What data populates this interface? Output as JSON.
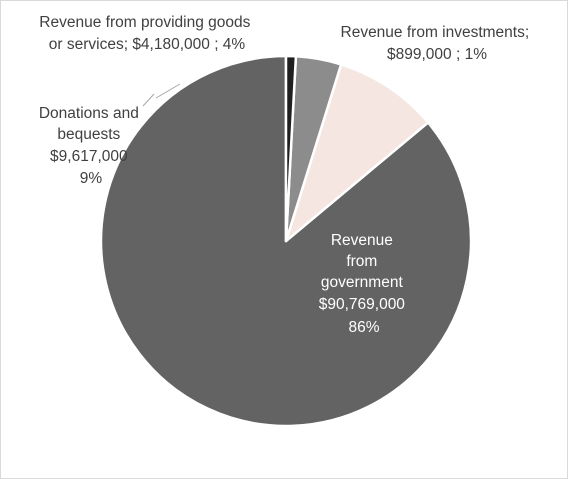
{
  "chart_data": {
    "type": "pie",
    "title": "",
    "slices": [
      {
        "name": "Revenue from government",
        "value": 90769000,
        "percent": 86,
        "color": "#636363",
        "label_lines": [
          "Revenue",
          "from",
          "government",
          "$90,769,000",
          "86%"
        ]
      },
      {
        "name": "Donations and bequests",
        "value": 9617000,
        "percent": 9,
        "color": "#f5e6e1",
        "label_lines": [
          "Donations and",
          "bequests",
          "$9,617,000",
          "9%"
        ]
      },
      {
        "name": "Revenue from providing goods or services",
        "value": 4180000,
        "percent": 4,
        "color": "#8c8c8c",
        "label_lines": [
          "Revenue from providing goods",
          "or services;  $4,180,000 ; 4%"
        ]
      },
      {
        "name": "Revenue from investments",
        "value": 899000,
        "percent": 1,
        "color": "#1f1f1f",
        "label_lines": [
          "Revenue from investments;",
          "$899,000 ; 1%"
        ]
      }
    ],
    "start_angle_deg": 0,
    "direction": "counterclockwise",
    "legend": "none"
  }
}
